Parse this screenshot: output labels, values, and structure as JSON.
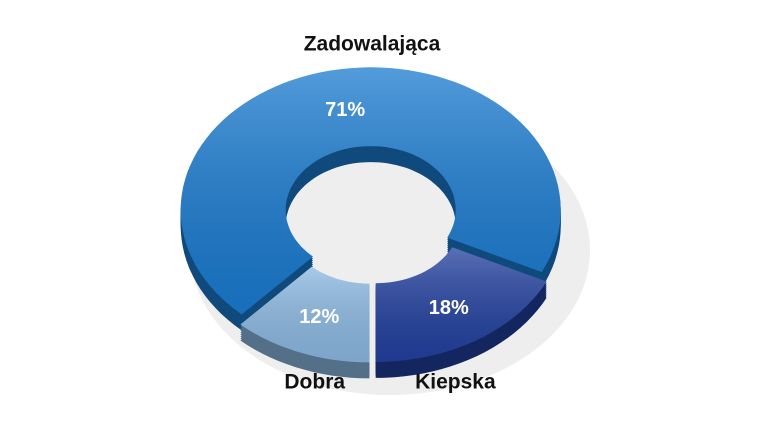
{
  "chart_data": {
    "type": "donut",
    "categories": [
      "Zadowalająca",
      "Kiepska",
      "Dobra"
    ],
    "values": [
      71,
      18,
      12
    ],
    "value_labels": [
      "71%",
      "18%",
      "12%"
    ],
    "colors": [
      "#1a7bd0",
      "#22409f",
      "#8cb9e2"
    ]
  }
}
